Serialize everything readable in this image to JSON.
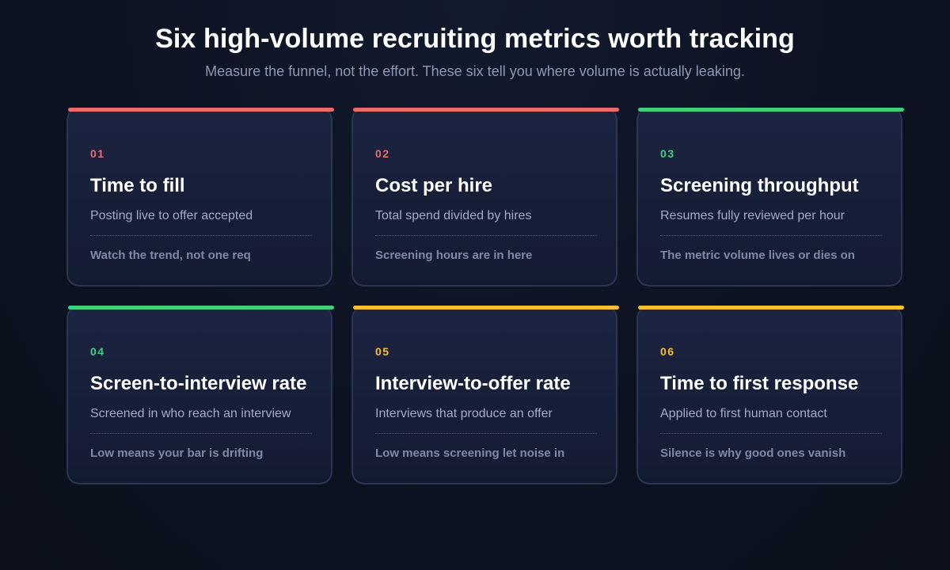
{
  "header": {
    "title": "Six high-volume recruiting metrics worth tracking",
    "subtitle": "Measure the funnel, not the effort. These six tell you where volume is actually leaking."
  },
  "colors": {
    "red": "#ef6b6b",
    "green": "#3fd07e",
    "yellow": "#f8bf32"
  },
  "cards": [
    {
      "number": "01",
      "title": "Time to fill",
      "description": "Posting live to offer accepted",
      "note": "Watch the trend, not one req",
      "accent": "#ef6b6b"
    },
    {
      "number": "02",
      "title": "Cost per hire",
      "description": "Total spend divided by hires",
      "note": "Screening hours are in here",
      "accent": "#ef6b6b"
    },
    {
      "number": "03",
      "title": "Screening throughput",
      "description": "Resumes fully reviewed per hour",
      "note": "The metric volume lives or dies on",
      "accent": "#3fd07e"
    },
    {
      "number": "04",
      "title": "Screen-to-interview rate",
      "description": "Screened in who reach an interview",
      "note": "Low means your bar is drifting",
      "accent": "#3fd07e"
    },
    {
      "number": "05",
      "title": "Interview-to-offer rate",
      "description": "Interviews that produce an offer",
      "note": "Low means screening let noise in",
      "accent": "#f8bf32"
    },
    {
      "number": "06",
      "title": "Time to first response",
      "description": "Applied to first human contact",
      "note": "Silence is why good ones vanish",
      "accent": "#f8bf32"
    }
  ]
}
